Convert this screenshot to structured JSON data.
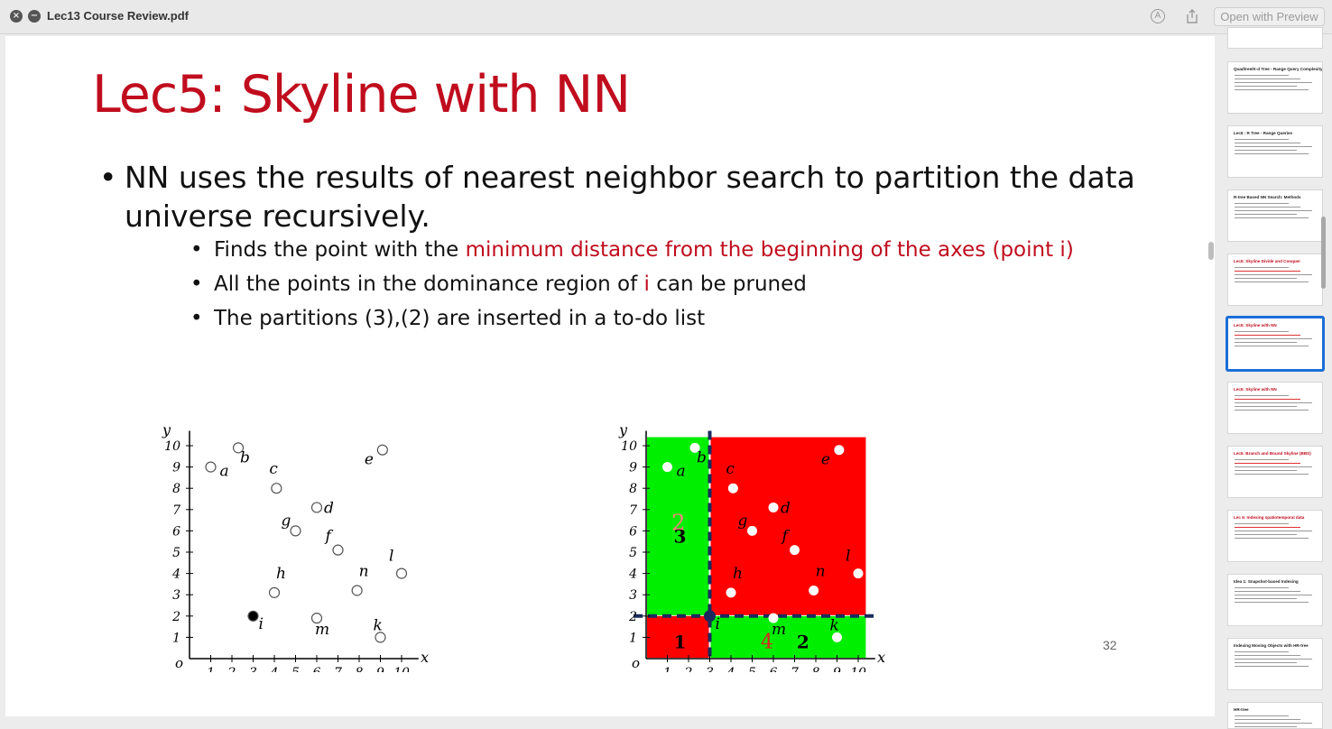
{
  "window": {
    "title": "Lec13 Course Review.pdf",
    "open_with": "Open with Preview"
  },
  "slide": {
    "title": "Lec5: Skyline with NN",
    "bullet_main": "NN uses the results of nearest neighbor search to partition the data universe recursively.",
    "sub1_a": "Finds the point with the ",
    "sub1_b": "minimum distance from the beginning of the axes (point i)",
    "sub2_a": "All the points in the dominance region of ",
    "sub2_b": "i",
    "sub2_c": " can be pruned",
    "sub3": "The partitions (3),(2) are inserted in a to-do list",
    "page_number": "32"
  },
  "chart_data": [
    {
      "type": "scatter",
      "xlabel": "x",
      "ylabel": "y",
      "origin_label": "o",
      "xlim": [
        0,
        10
      ],
      "ylim": [
        0,
        10
      ],
      "x_ticks": [
        "1",
        "2",
        "3",
        "4",
        "5",
        "6",
        "7",
        "8",
        "9",
        "10"
      ],
      "y_ticks": [
        "1",
        "2",
        "3",
        "4",
        "5",
        "6",
        "7",
        "8",
        "9",
        "10"
      ],
      "points": [
        {
          "name": "a",
          "x": 1,
          "y": 9
        },
        {
          "name": "b",
          "x": 2.3,
          "y": 9.9
        },
        {
          "name": "c",
          "x": 4.1,
          "y": 8
        },
        {
          "name": "d",
          "x": 6,
          "y": 7.1
        },
        {
          "name": "e",
          "x": 9.1,
          "y": 9.8
        },
        {
          "name": "g",
          "x": 5,
          "y": 6
        },
        {
          "name": "f",
          "x": 7,
          "y": 5.1
        },
        {
          "name": "h",
          "x": 4,
          "y": 3.1
        },
        {
          "name": "n",
          "x": 7.9,
          "y": 3.2
        },
        {
          "name": "l",
          "x": 10,
          "y": 4
        },
        {
          "name": "i",
          "x": 3,
          "y": 2,
          "filled": true
        },
        {
          "name": "m",
          "x": 6,
          "y": 1.9
        },
        {
          "name": "k",
          "x": 9,
          "y": 1
        }
      ]
    },
    {
      "type": "scatter",
      "xlabel": "x",
      "ylabel": "y",
      "origin_label": "o",
      "xlim": [
        0,
        10
      ],
      "ylim": [
        0,
        10
      ],
      "x_ticks": [
        "1",
        "2",
        "3",
        "4",
        "5",
        "6",
        "7",
        "8",
        "9",
        "10"
      ],
      "y_ticks": [
        "1",
        "2",
        "3",
        "4",
        "5",
        "6",
        "7",
        "8",
        "9",
        "10"
      ],
      "split_point": {
        "x": 3,
        "y": 2
      },
      "regions": [
        {
          "label": "1",
          "x": [
            0,
            3
          ],
          "y": [
            0,
            2
          ],
          "color": "#ff0000"
        },
        {
          "label": "2",
          "x": [
            0,
            3
          ],
          "y": [
            2,
            10.4
          ],
          "color": "#00ee00"
        },
        {
          "label": "3",
          "x": [
            0,
            3
          ],
          "y": [
            2,
            10.4
          ],
          "color": "#00ee00"
        },
        {
          "label": "4",
          "x": [
            3,
            10.4
          ],
          "y": [
            2,
            10.4
          ],
          "color": "#ff0000"
        },
        {
          "label": "2",
          "x": [
            3,
            10.4
          ],
          "y": [
            0,
            2
          ],
          "color": "#00ee00"
        }
      ],
      "points": [
        {
          "name": "a",
          "x": 1,
          "y": 9
        },
        {
          "name": "b",
          "x": 2.3,
          "y": 9.9
        },
        {
          "name": "c",
          "x": 4.1,
          "y": 8
        },
        {
          "name": "d",
          "x": 6,
          "y": 7.1
        },
        {
          "name": "e",
          "x": 9.1,
          "y": 9.8
        },
        {
          "name": "g",
          "x": 5,
          "y": 6
        },
        {
          "name": "f",
          "x": 7,
          "y": 5.1
        },
        {
          "name": "h",
          "x": 4,
          "y": 3.1
        },
        {
          "name": "n",
          "x": 7.9,
          "y": 3.2
        },
        {
          "name": "l",
          "x": 10,
          "y": 4
        },
        {
          "name": "i",
          "x": 3,
          "y": 2,
          "filled": true
        },
        {
          "name": "m",
          "x": 6,
          "y": 1.9
        },
        {
          "name": "k",
          "x": 9,
          "y": 1
        }
      ]
    }
  ],
  "thumbnails": [
    {
      "title": "Quadtree/K-d Tree - Range Query Complexity",
      "red": false
    },
    {
      "title": "Lec5 : R Tree - Range Queries",
      "red": false
    },
    {
      "title": "R-tree Based NN Search: Methods",
      "red": false
    },
    {
      "title": "Lec5: Skyline Divide and Conquer",
      "red": true
    },
    {
      "title": "Lec5: Skyline with NN",
      "red": true,
      "selected": true
    },
    {
      "title": "Lec5: Skyline with NN",
      "red": true
    },
    {
      "title": "Lec5: Branch and Bound Skyline (BBS)",
      "red": true
    },
    {
      "title": "Lec 6: Indexing spatiotemporal data",
      "red": true
    },
    {
      "title": "Idea 1: Snapshot-based Indexing",
      "red": false
    },
    {
      "title": "Indexing Moving Objects with HR-tree",
      "red": false
    },
    {
      "title": "HR-tree",
      "red": false
    }
  ]
}
